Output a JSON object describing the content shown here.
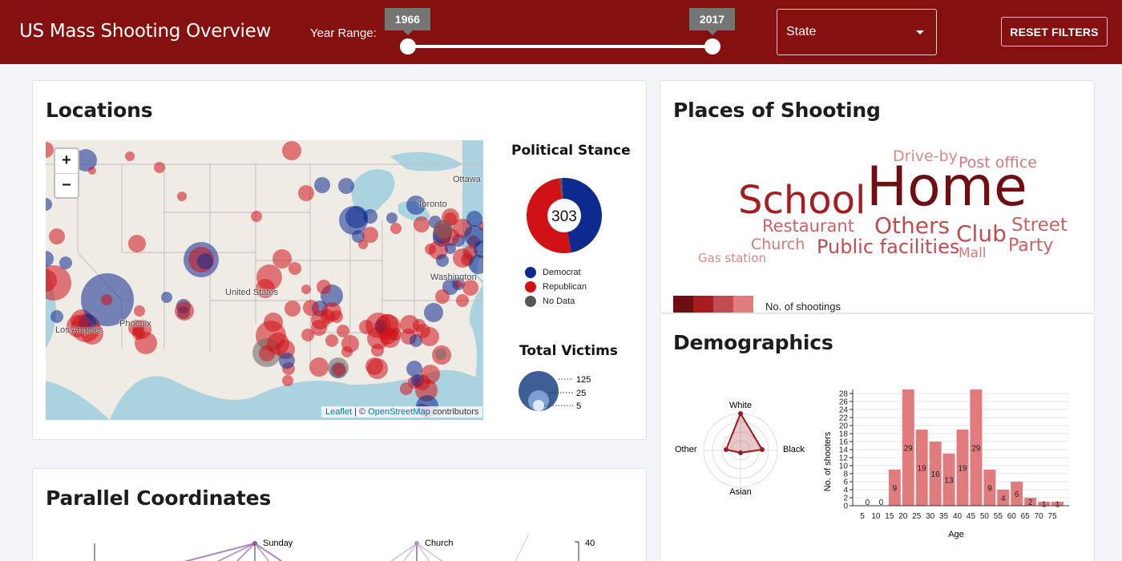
{
  "header": {
    "title": "US Mass Shooting Overview",
    "year_label": "Year Range:",
    "year_start": "1966",
    "year_end": "2017",
    "state_placeholder": "State",
    "reset_label": "RESET FILTERS"
  },
  "locations": {
    "title": "Locations",
    "map_labels": {
      "ottawa": "Ottawa",
      "toronto": "Toronto",
      "washington": "Washington",
      "united_states": "United States",
      "los_angeles": "Los Angeles",
      "phoenix": "Phoenix"
    },
    "zoom_in": "+",
    "zoom_out": "−",
    "attribution": {
      "leaflet": "Leaflet",
      "sep": " | © ",
      "osm": "OpenStreetMap",
      "suffix": " contributors"
    },
    "political": {
      "title": "Political Stance",
      "total": "303",
      "democrat_fraction": 0.48,
      "nodata_fraction": 0.01,
      "legend": [
        "Democrat",
        "Republican",
        "No Data"
      ]
    },
    "victims": {
      "title": "Total Victims",
      "sizes": [
        "125",
        "25",
        "5"
      ]
    }
  },
  "colors": {
    "democrat": "#0d2a8f",
    "republican": "#d01217",
    "no_data": "#555555",
    "header": "#851010"
  },
  "places": {
    "title": "Places of Shooting",
    "words": [
      "Home",
      "School",
      "Others",
      "Club",
      "Street",
      "Public facilities",
      "Restaurant",
      "Party",
      "Church",
      "Post office",
      "Drive-by",
      "Mall",
      "Gas station"
    ],
    "scale_label": "No. of shootings"
  },
  "demographics": {
    "title": "Demographics",
    "radar_axes": [
      "White",
      "Black",
      "Asian",
      "Other"
    ]
  },
  "chart_data": {
    "type": "bar",
    "xlabel": "Age",
    "ylabel": "No. of shooters",
    "categories": [
      "5",
      "10",
      "15",
      "20",
      "25",
      "30",
      "35",
      "40",
      "45",
      "50",
      "55",
      "60",
      "65",
      "70",
      "75"
    ],
    "values": [
      0,
      0,
      9,
      29,
      19,
      16,
      13,
      19,
      29,
      9,
      4,
      6,
      2,
      1,
      1
    ],
    "y_ticks": [
      "0",
      "2",
      "4",
      "6",
      "8",
      "10",
      "12",
      "14",
      "16",
      "18",
      "20",
      "22",
      "24",
      "26",
      "28"
    ],
    "ylim": [
      0,
      29
    ],
    "grid": true
  },
  "parallel": {
    "title": "Parallel Coordinates",
    "labels": [
      "Sunday",
      "Church",
      "40"
    ]
  }
}
